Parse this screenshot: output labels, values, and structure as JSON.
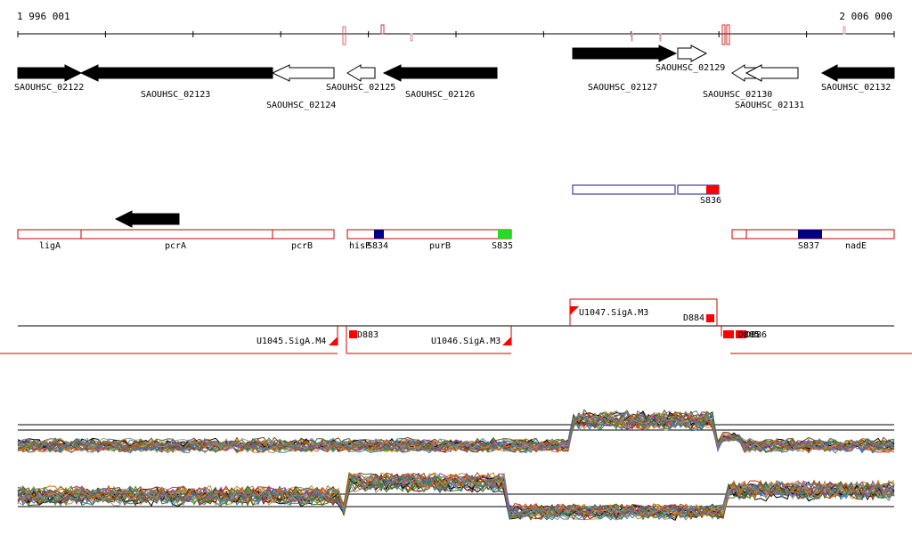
{
  "axis": {
    "start_label": "1 996 001",
    "end_label": "2 006 000"
  },
  "genes": [
    {
      "name": "SAOUHSC_02122",
      "strand": "-",
      "fill": "#000000"
    },
    {
      "name": "SAOUHSC_02123",
      "strand": "-",
      "fill": "#000000"
    },
    {
      "name": "SAOUHSC_02124",
      "strand": "-",
      "fill": "#ffffff"
    },
    {
      "name": "SAOUHSC_02125",
      "strand": "-",
      "fill": "#ffffff"
    },
    {
      "name": "SAOUHSC_02126",
      "strand": "-",
      "fill": "#000000"
    },
    {
      "name": "SAOUHSC_02127",
      "strand": "+",
      "fill": "#000000"
    },
    {
      "name": "SAOUHSC_02129",
      "strand": "+",
      "fill": "#ffffff"
    },
    {
      "name": "SAOUHSC_02130",
      "strand": "-",
      "fill": "#ffffff"
    },
    {
      "name": "SAOUHSC_02131",
      "strand": "-",
      "fill": "#ffffff"
    },
    {
      "name": "SAOUHSC_02132",
      "strand": "-",
      "fill": "#000000"
    }
  ],
  "segments": [
    {
      "name": "S836"
    }
  ],
  "annotations": [
    {
      "name": "ligA"
    },
    {
      "name": "pcrA"
    },
    {
      "name": "pcrB"
    },
    {
      "name": "hisP"
    },
    {
      "name": "S834"
    },
    {
      "name": "purB"
    },
    {
      "name": "S835"
    },
    {
      "name": "S837"
    },
    {
      "name": "nadE"
    }
  ],
  "transcription_units": [
    {
      "name": "U1045.SigA.M4"
    },
    {
      "name": "U1046.SigA.M3"
    },
    {
      "name": "U1047.SigA.M3"
    }
  ],
  "terminators": [
    {
      "name": "D883"
    },
    {
      "name": "D884"
    },
    {
      "name": "D885"
    },
    {
      "name": "D886"
    }
  ],
  "colors": {
    "gene_filled": "#000000",
    "segment_outline_blue": "#1a1a8c",
    "feature_outline": "#cc0000",
    "marker_red": "#ff0000",
    "marker_blue": "#000080",
    "marker_green": "#22dd22"
  }
}
